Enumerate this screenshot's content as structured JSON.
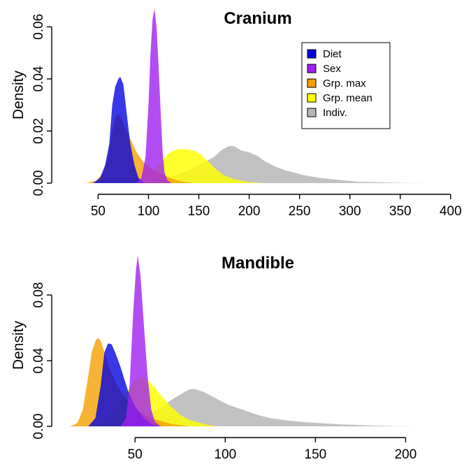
{
  "chart_data": [
    {
      "type": "area",
      "title": "Cranium",
      "xlabel": "",
      "ylabel": "Density",
      "xlim": [
        15,
        405
      ],
      "ylim": [
        0,
        0.066
      ],
      "xticks": [
        50,
        100,
        150,
        200,
        250,
        300,
        350,
        400
      ],
      "yticks": [
        0.0,
        0.02,
        0.04,
        0.06
      ],
      "ytick_labels": [
        "0.00",
        "0.02",
        "0.04",
        "0.06"
      ],
      "legend_position": "top-right",
      "series": [
        {
          "name": "Indiv.",
          "color": "#a9a9a9",
          "opacity": 0.72,
          "points": [
            [
              80,
              0
            ],
            [
              100,
              0.0005
            ],
            [
              120,
              0.002
            ],
            [
              140,
              0.005
            ],
            [
              155,
              0.008
            ],
            [
              165,
              0.01
            ],
            [
              172,
              0.0125
            ],
            [
              180,
              0.0143
            ],
            [
              185,
              0.0142
            ],
            [
              192,
              0.0125
            ],
            [
              200,
              0.0118
            ],
            [
              208,
              0.0105
            ],
            [
              215,
              0.0085
            ],
            [
              225,
              0.0065
            ],
            [
              235,
              0.005
            ],
            [
              245,
              0.004
            ],
            [
              255,
              0.003
            ],
            [
              270,
              0.002
            ],
            [
              290,
              0.0012
            ],
            [
              310,
              0.0005
            ],
            [
              330,
              0.0003
            ],
            [
              350,
              0.0001
            ],
            [
              380,
              0
            ]
          ]
        },
        {
          "name": "Grp. mean",
          "color": "#ffff00",
          "opacity": 0.82,
          "points": [
            [
              80,
              0
            ],
            [
              95,
              0.002
            ],
            [
              105,
              0.005
            ],
            [
              112,
              0.008
            ],
            [
              120,
              0.0115
            ],
            [
              128,
              0.013
            ],
            [
              135,
              0.0131
            ],
            [
              145,
              0.0125
            ],
            [
              152,
              0.011
            ],
            [
              160,
              0.008
            ],
            [
              168,
              0.005
            ],
            [
              175,
              0.003
            ],
            [
              185,
              0.0015
            ],
            [
              200,
              0.0004
            ],
            [
              215,
              0
            ]
          ]
        },
        {
          "name": "Grp. max",
          "color": "#f5a000",
          "opacity": 0.8,
          "points": [
            [
              38,
              0
            ],
            [
              48,
              0.001
            ],
            [
              55,
              0.004
            ],
            [
              60,
              0.01
            ],
            [
              64,
              0.02
            ],
            [
              67,
              0.025
            ],
            [
              70,
              0.0265
            ],
            [
              73,
              0.025
            ],
            [
              77,
              0.021
            ],
            [
              82,
              0.017
            ],
            [
              88,
              0.012
            ],
            [
              95,
              0.008
            ],
            [
              105,
              0.005
            ],
            [
              115,
              0.003
            ],
            [
              125,
              0.0015
            ],
            [
              135,
              0.0005
            ],
            [
              145,
              0
            ]
          ]
        },
        {
          "name": "Diet",
          "color": "#0000e0",
          "opacity": 0.78,
          "points": [
            [
              45,
              0
            ],
            [
              52,
              0.002
            ],
            [
              57,
              0.007
            ],
            [
              61,
              0.015
            ],
            [
              64,
              0.03
            ],
            [
              67,
              0.037
            ],
            [
              70,
              0.04
            ],
            [
              72,
              0.0408
            ],
            [
              75,
              0.038
            ],
            [
              78,
              0.028
            ],
            [
              82,
              0.015
            ],
            [
              86,
              0.007
            ],
            [
              90,
              0.002
            ],
            [
              96,
              0
            ]
          ]
        },
        {
          "name": "Sex",
          "color": "#a020f0",
          "opacity": 0.8,
          "points": [
            [
              88,
              0
            ],
            [
              93,
              0.002
            ],
            [
              97,
              0.01
            ],
            [
              100,
              0.03
            ],
            [
              102,
              0.05
            ],
            [
              104,
              0.0628
            ],
            [
              106,
              0.067
            ],
            [
              108,
              0.06
            ],
            [
              110,
              0.045
            ],
            [
              112,
              0.028
            ],
            [
              114,
              0.012
            ],
            [
              116,
              0.004
            ],
            [
              119,
              0.001
            ],
            [
              123,
              0
            ]
          ]
        }
      ]
    },
    {
      "type": "area",
      "title": "Mandible",
      "xlabel": "",
      "ylabel": "Density",
      "xlim": [
        10,
        225
      ],
      "ylim": [
        0,
        0.106
      ],
      "xticks": [
        50,
        100,
        150,
        200
      ],
      "yticks": [
        0.0,
        0.04,
        0.08
      ],
      "ytick_labels": [
        "0.00",
        "0.04",
        "0.08"
      ],
      "series": [
        {
          "name": "Indiv.",
          "color": "#a9a9a9",
          "opacity": 0.72,
          "points": [
            [
              30,
              0
            ],
            [
              45,
              0.002
            ],
            [
              55,
              0.006
            ],
            [
              62,
              0.01
            ],
            [
              70,
              0.016
            ],
            [
              76,
              0.02
            ],
            [
              80,
              0.0225
            ],
            [
              83,
              0.0228
            ],
            [
              88,
              0.021
            ],
            [
              95,
              0.017
            ],
            [
              102,
              0.013
            ],
            [
              110,
              0.01
            ],
            [
              118,
              0.007
            ],
            [
              125,
              0.005
            ],
            [
              135,
              0.0035
            ],
            [
              145,
              0.0025
            ],
            [
              155,
              0.0018
            ],
            [
              165,
              0.0012
            ],
            [
              175,
              0.0008
            ],
            [
              185,
              0.0004
            ],
            [
              195,
              0.0001
            ],
            [
              210,
              0
            ]
          ]
        },
        {
          "name": "Grp. mean",
          "color": "#ffff00",
          "opacity": 0.82,
          "points": [
            [
              25,
              0
            ],
            [
              33,
              0.003
            ],
            [
              38,
              0.008
            ],
            [
              42,
              0.015
            ],
            [
              46,
              0.022
            ],
            [
              50,
              0.028
            ],
            [
              53,
              0.0305
            ],
            [
              56,
              0.029
            ],
            [
              60,
              0.025
            ],
            [
              65,
              0.018
            ],
            [
              70,
              0.012
            ],
            [
              75,
              0.007
            ],
            [
              80,
              0.004
            ],
            [
              88,
              0.0015
            ],
            [
              95,
              0
            ]
          ]
        },
        {
          "name": "Grp. max",
          "color": "#f5a000",
          "opacity": 0.8,
          "points": [
            [
              14,
              0
            ],
            [
              18,
              0.002
            ],
            [
              21,
              0.01
            ],
            [
              24,
              0.03
            ],
            [
              26,
              0.045
            ],
            [
              28,
              0.052
            ],
            [
              29.5,
              0.054
            ],
            [
              31,
              0.052
            ],
            [
              33,
              0.045
            ],
            [
              36,
              0.035
            ],
            [
              40,
              0.025
            ],
            [
              45,
              0.017
            ],
            [
              50,
              0.011
            ],
            [
              55,
              0.007
            ],
            [
              62,
              0.004
            ],
            [
              70,
              0.0015
            ],
            [
              80,
              0
            ]
          ]
        },
        {
          "name": "Diet",
          "color": "#0000e0",
          "opacity": 0.78,
          "points": [
            [
              24,
              0
            ],
            [
              28,
              0.005
            ],
            [
              31,
              0.025
            ],
            [
              33,
              0.045
            ],
            [
              35,
              0.0505
            ],
            [
              37,
              0.05
            ],
            [
              39,
              0.045
            ],
            [
              42,
              0.036
            ],
            [
              46,
              0.022
            ],
            [
              50,
              0.012
            ],
            [
              55,
              0.005
            ],
            [
              60,
              0.001
            ],
            [
              65,
              0
            ]
          ]
        },
        {
          "name": "Sex",
          "color": "#a020f0",
          "opacity": 0.8,
          "points": [
            [
              42,
              0
            ],
            [
              45,
              0.005
            ],
            [
              47,
              0.025
            ],
            [
              49,
              0.07
            ],
            [
              50.5,
              0.095
            ],
            [
              51.5,
              0.104
            ],
            [
              53,
              0.092
            ],
            [
              55,
              0.06
            ],
            [
              57,
              0.03
            ],
            [
              59,
              0.01
            ],
            [
              61,
              0.003
            ],
            [
              64,
              0
            ]
          ]
        }
      ]
    }
  ],
  "legend": {
    "items": [
      {
        "label": "Diet",
        "color": "#0000e0"
      },
      {
        "label": "Sex",
        "color": "#a020f0"
      },
      {
        "label": "Grp. max",
        "color": "#f5a000"
      },
      {
        "label": "Grp. mean",
        "color": "#ffff00"
      },
      {
        "label": "Indiv.",
        "color": "#b5b5b5"
      }
    ]
  }
}
